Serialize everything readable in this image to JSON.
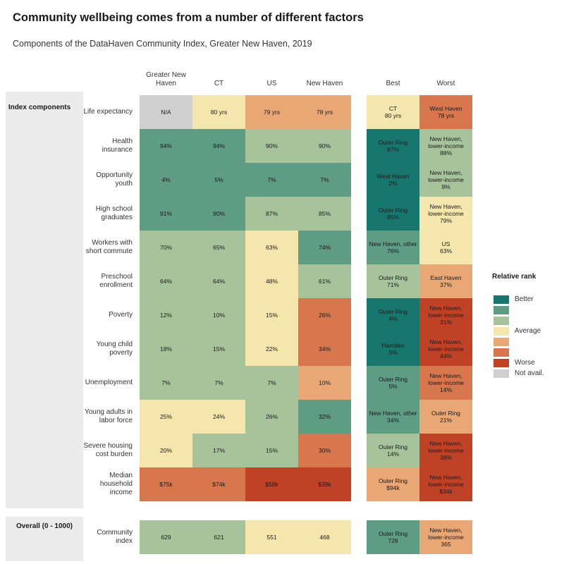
{
  "title": "Community wellbeing comes from a number of different factors",
  "subtitle": "Components of the DataHaven Community Index, Greater New Haven, 2019",
  "colors": {
    "better_dark": "#17766e",
    "better": "#5e9c83",
    "good": "#a6c39b",
    "average": "#f4e6ac",
    "below": "#e8a775",
    "poor": "#d8774e",
    "worse": "#c04226",
    "not_available": "#cfcfcf",
    "panel": "#ececec"
  },
  "legend": {
    "title": "Relative rank",
    "items": [
      {
        "color_key": "better_dark",
        "label": "Better"
      },
      {
        "color_key": "better",
        "label": ""
      },
      {
        "color_key": "good",
        "label": ""
      },
      {
        "color_key": "average",
        "label": "Average"
      },
      {
        "color_key": "below",
        "label": ""
      },
      {
        "color_key": "poor",
        "label": ""
      },
      {
        "color_key": "worse",
        "label": "Worse"
      },
      {
        "color_key": "not_available",
        "label": "Not avail."
      }
    ]
  },
  "chart_data": {
    "type": "table",
    "title": "Community wellbeing comes from a number of different factors",
    "subtitle": "Components of the DataHaven Community Index, Greater New Haven, 2019",
    "columns": [
      "Greater New Haven",
      "CT",
      "US",
      "New Haven",
      "Best",
      "Worst"
    ],
    "groups": [
      {
        "label": "Index components",
        "rows": [
          {
            "label": "Life expectancy",
            "cells": [
              {
                "value": "N/A",
                "rank": "not_available"
              },
              {
                "value": "80 yrs",
                "rank": "average"
              },
              {
                "value": "79 yrs",
                "rank": "below"
              },
              {
                "value": "78 yrs",
                "rank": "below"
              },
              {
                "place": "CT",
                "value": "80 yrs",
                "rank": "average"
              },
              {
                "place": "West Haven",
                "value": "78 yrs",
                "rank": "poor"
              }
            ]
          },
          {
            "label": "Health insurance",
            "cells": [
              {
                "value": "94%",
                "rank": "better"
              },
              {
                "value": "94%",
                "rank": "better"
              },
              {
                "value": "90%",
                "rank": "good"
              },
              {
                "value": "90%",
                "rank": "good"
              },
              {
                "place": "Outer Ring",
                "value": "97%",
                "rank": "better_dark"
              },
              {
                "place": "New Haven, lower-income",
                "value": "88%",
                "rank": "good"
              }
            ]
          },
          {
            "label": "Opportunity youth",
            "cells": [
              {
                "value": "4%",
                "rank": "better"
              },
              {
                "value": "5%",
                "rank": "better"
              },
              {
                "value": "7%",
                "rank": "better"
              },
              {
                "value": "7%",
                "rank": "better"
              },
              {
                "place": "West Haven",
                "value": "2%",
                "rank": "better_dark"
              },
              {
                "place": "New Haven, lower-income",
                "value": "9%",
                "rank": "good"
              }
            ]
          },
          {
            "label": "High school graduates",
            "cells": [
              {
                "value": "91%",
                "rank": "better"
              },
              {
                "value": "90%",
                "rank": "better"
              },
              {
                "value": "87%",
                "rank": "good"
              },
              {
                "value": "85%",
                "rank": "good"
              },
              {
                "place": "Outer Ring",
                "value": "95%",
                "rank": "better_dark"
              },
              {
                "place": "New Haven, lower-income",
                "value": "79%",
                "rank": "average"
              }
            ]
          },
          {
            "label": "Workers with short commute",
            "cells": [
              {
                "value": "70%",
                "rank": "good"
              },
              {
                "value": "65%",
                "rank": "good"
              },
              {
                "value": "63%",
                "rank": "average"
              },
              {
                "value": "74%",
                "rank": "better"
              },
              {
                "place": "New Haven, other",
                "value": "76%",
                "rank": "better"
              },
              {
                "place": "US",
                "value": "63%",
                "rank": "average"
              }
            ]
          },
          {
            "label": "Preschool enrollment",
            "cells": [
              {
                "value": "64%",
                "rank": "good"
              },
              {
                "value": "64%",
                "rank": "good"
              },
              {
                "value": "48%",
                "rank": "average"
              },
              {
                "value": "61%",
                "rank": "good"
              },
              {
                "place": "Outer Ring",
                "value": "71%",
                "rank": "good"
              },
              {
                "place": "East Haven",
                "value": "37%",
                "rank": "below"
              }
            ]
          },
          {
            "label": "Poverty",
            "cells": [
              {
                "value": "12%",
                "rank": "good"
              },
              {
                "value": "10%",
                "rank": "good"
              },
              {
                "value": "15%",
                "rank": "average"
              },
              {
                "value": "26%",
                "rank": "poor"
              },
              {
                "place": "Outer Ring",
                "value": "4%",
                "rank": "better_dark"
              },
              {
                "place": "New Haven, lower-income",
                "value": "31%",
                "rank": "worse"
              }
            ]
          },
          {
            "label": "Young child poverty",
            "cells": [
              {
                "value": "18%",
                "rank": "good"
              },
              {
                "value": "15%",
                "rank": "good"
              },
              {
                "value": "22%",
                "rank": "average"
              },
              {
                "value": "34%",
                "rank": "poor"
              },
              {
                "place": "Hamden",
                "value": "5%",
                "rank": "better_dark"
              },
              {
                "place": "New Haven, lower-income",
                "value": "44%",
                "rank": "worse"
              }
            ]
          },
          {
            "label": "Unemployment",
            "cells": [
              {
                "value": "7%",
                "rank": "good"
              },
              {
                "value": "7%",
                "rank": "good"
              },
              {
                "value": "7%",
                "rank": "good"
              },
              {
                "value": "10%",
                "rank": "below"
              },
              {
                "place": "Outer Ring",
                "value": "5%",
                "rank": "better"
              },
              {
                "place": "New Haven, lower-income",
                "value": "14%",
                "rank": "poor"
              }
            ]
          },
          {
            "label": "Young adults in labor force",
            "cells": [
              {
                "value": "25%",
                "rank": "average"
              },
              {
                "value": "24%",
                "rank": "average"
              },
              {
                "value": "26%",
                "rank": "good"
              },
              {
                "value": "32%",
                "rank": "better"
              },
              {
                "place": "New Haven, other",
                "value": "34%",
                "rank": "better"
              },
              {
                "place": "Outer Ring",
                "value": "21%",
                "rank": "below"
              }
            ]
          },
          {
            "label": "Severe housing cost burden",
            "cells": [
              {
                "value": "20%",
                "rank": "average"
              },
              {
                "value": "17%",
                "rank": "good"
              },
              {
                "value": "15%",
                "rank": "good"
              },
              {
                "value": "30%",
                "rank": "poor"
              },
              {
                "place": "Outer Ring",
                "value": "14%",
                "rank": "good"
              },
              {
                "place": "New Haven, lower-income",
                "value": "38%",
                "rank": "worse"
              }
            ]
          },
          {
            "label": "Median household income",
            "cells": [
              {
                "value": "$75k",
                "rank": "poor"
              },
              {
                "value": "$74k",
                "rank": "poor"
              },
              {
                "value": "$58k",
                "rank": "worse"
              },
              {
                "value": "$39k",
                "rank": "worse"
              },
              {
                "place": "Outer Ring",
                "value": "$94k",
                "rank": "below"
              },
              {
                "place": "New Haven, lower-income",
                "value": "$34k",
                "rank": "worse"
              }
            ]
          }
        ]
      },
      {
        "label": "Overall (0 - 1000)",
        "rows": [
          {
            "label": "Community index",
            "cells": [
              {
                "value": "629",
                "rank": "good"
              },
              {
                "value": "621",
                "rank": "good"
              },
              {
                "value": "551",
                "rank": "average"
              },
              {
                "value": "468",
                "rank": "average"
              },
              {
                "place": "Outer Ring",
                "value": "728",
                "rank": "better"
              },
              {
                "place": "New Haven, lower-income",
                "value": "365",
                "rank": "below"
              }
            ]
          }
        ]
      }
    ]
  }
}
